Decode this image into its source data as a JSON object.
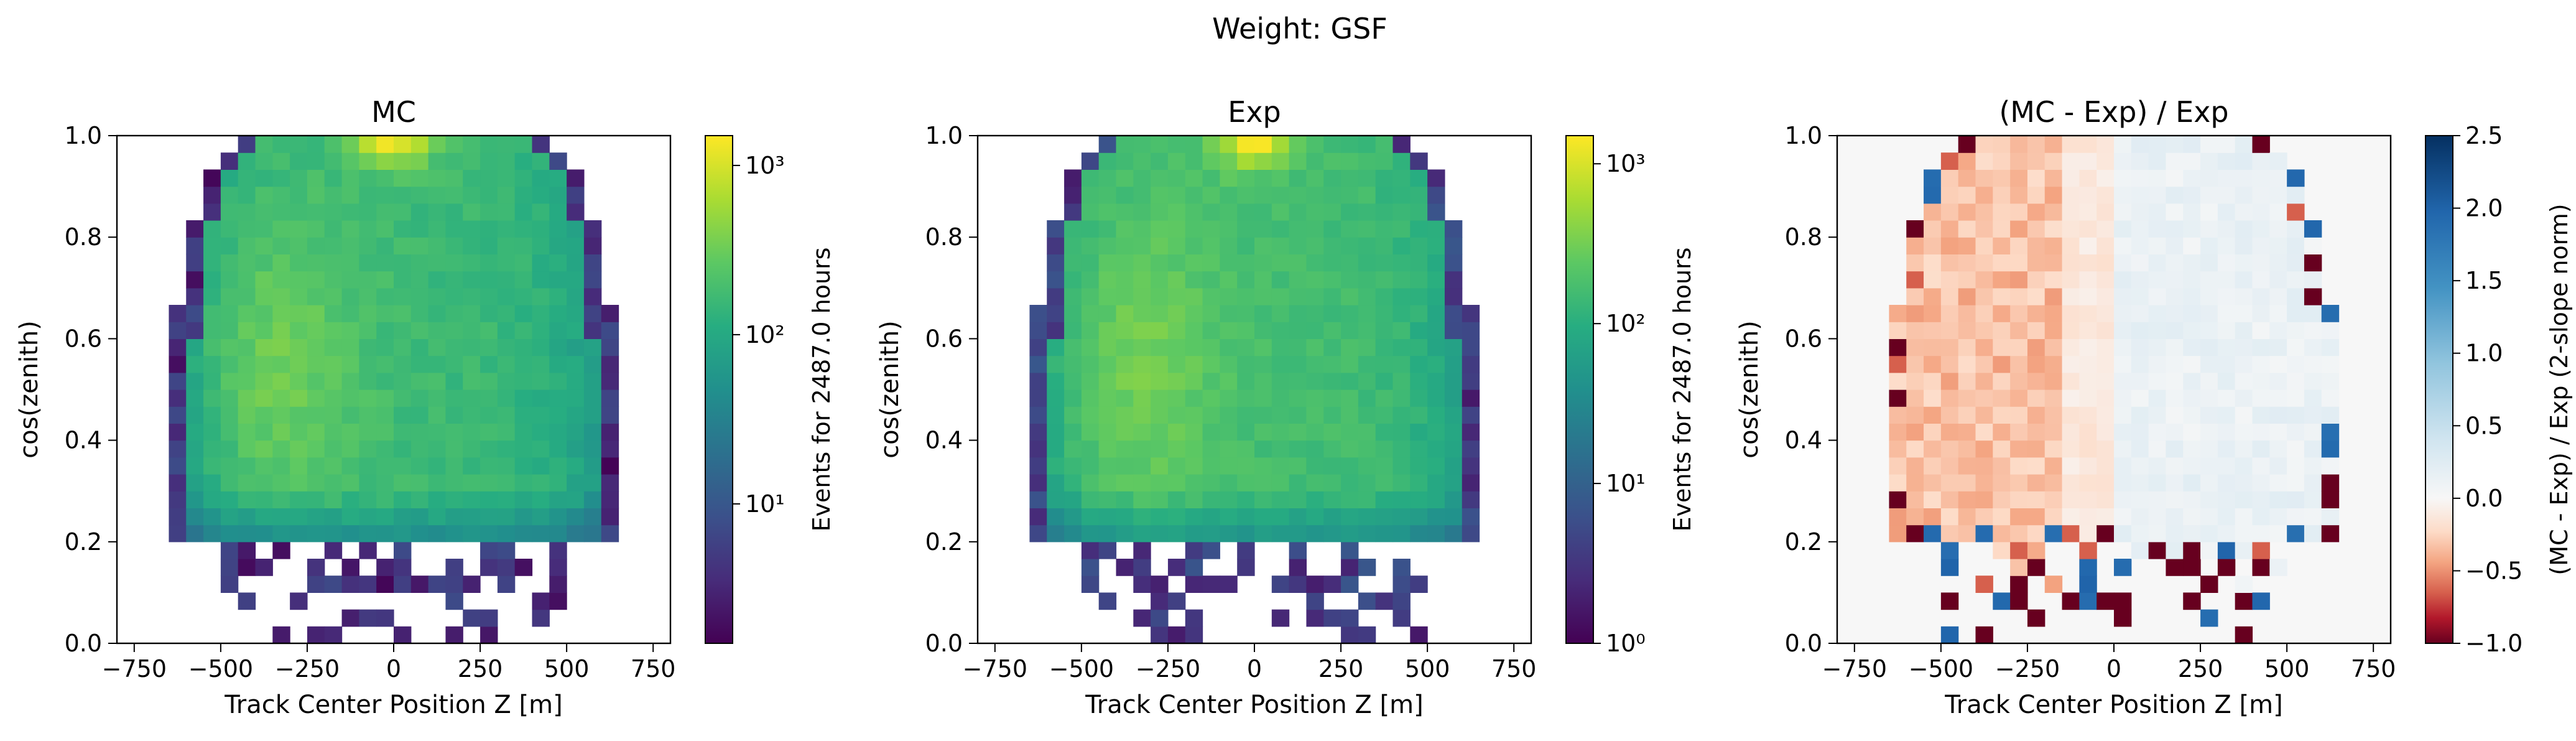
{
  "suptitle": "Weight: GSF",
  "chart_data": [
    {
      "type": "heatmap",
      "title": "MC",
      "xlabel": "Track Center Position Z [m]",
      "ylabel": "cos(zenith)",
      "xlim": [
        -800,
        800
      ],
      "ylim": [
        0.0,
        1.0
      ],
      "xticks": [
        -750,
        -500,
        -250,
        0,
        250,
        500,
        750
      ],
      "xtick_labels": [
        "−750",
        "−500",
        "−250",
        "0",
        "250",
        "500",
        "750"
      ],
      "yticks": [
        0.0,
        0.2,
        0.4,
        0.6,
        0.8,
        1.0
      ],
      "ytick_labels": [
        "0.0",
        "0.2",
        "0.4",
        "0.6",
        "0.8",
        "1.0"
      ],
      "grid": false,
      "colormap": "viridis",
      "color_scale": "log",
      "colorbar": {
        "label": "Events for 2487.0 hours",
        "range": [
          1.5,
          1500
        ],
        "ticks": [
          10,
          100,
          1000
        ],
        "tick_labels": [
          "10¹",
          "10²",
          "10³"
        ]
      },
      "grid_bins": {
        "z_range": [
          -800,
          800
        ],
        "z_bins": 32,
        "cos_range": [
          0,
          1
        ],
        "cos_bins": 30
      },
      "summary": "Roughly dome-shaped occupancy; peak ~1e3 events near Z=0, cos(zenith)=1.0; bright yellow-green band around Z=-500 to -250, cos 0.4-0.7; sparse low counts below cos 0.2"
    },
    {
      "type": "heatmap",
      "title": "Exp",
      "xlabel": "Track Center Position Z [m]",
      "ylabel": "cos(zenith)",
      "xlim": [
        -800,
        800
      ],
      "ylim": [
        0.0,
        1.0
      ],
      "xticks": [
        -750,
        -500,
        -250,
        0,
        250,
        500,
        750
      ],
      "xtick_labels": [
        "−750",
        "−500",
        "−250",
        "0",
        "250",
        "500",
        "750"
      ],
      "yticks": [
        0.0,
        0.2,
        0.4,
        0.6,
        0.8,
        1.0
      ],
      "ytick_labels": [
        "0.0",
        "0.2",
        "0.4",
        "0.6",
        "0.8",
        "1.0"
      ],
      "grid": false,
      "colormap": "viridis",
      "color_scale": "log",
      "colorbar": {
        "label": "Events for 2487.0 hours",
        "range": [
          1,
          1500
        ],
        "ticks": [
          1,
          10,
          100,
          1000
        ],
        "tick_labels": [
          "10⁰",
          "10¹",
          "10²",
          "10³"
        ]
      },
      "grid_bins": {
        "z_range": [
          -800,
          800
        ],
        "z_bins": 32,
        "cos_range": [
          0,
          1
        ],
        "cos_bins": 30
      },
      "summary": "Similar dome-shaped occupancy as MC; peak ~1e3 near Z=0, cos=1.0; scattered low-count bins below cos 0.2"
    },
    {
      "type": "heatmap",
      "title": "(MC - Exp) / Exp",
      "xlabel": "Track Center Position Z [m]",
      "ylabel": "cos(zenith)",
      "xlim": [
        -800,
        800
      ],
      "ylim": [
        0.0,
        1.0
      ],
      "xticks": [
        -750,
        -500,
        -250,
        0,
        250,
        500,
        750
      ],
      "xtick_labels": [
        "−750",
        "−500",
        "−250",
        "0",
        "250",
        "500",
        "750"
      ],
      "yticks": [
        0.0,
        0.2,
        0.4,
        0.6,
        0.8,
        1.0
      ],
      "ytick_labels": [
        "0.0",
        "0.2",
        "0.4",
        "0.6",
        "0.8",
        "1.0"
      ],
      "grid": false,
      "colormap": "RdBu",
      "color_scale": "two-slope",
      "colorbar": {
        "label": "(MC - Exp) / Exp (2-slope norm)",
        "range": [
          -1.0,
          2.5
        ],
        "center": 0.0,
        "ticks": [
          -1.0,
          -0.5,
          0.0,
          0.5,
          1.0,
          1.5,
          2.0,
          2.5
        ],
        "tick_labels": [
          "−1.0",
          "−0.5",
          "0.0",
          "0.5",
          "1.0",
          "1.5",
          "2.0",
          "2.5"
        ]
      },
      "grid_bins": {
        "z_range": [
          -800,
          800
        ],
        "z_bins": 32,
        "cos_range": [
          0,
          1
        ],
        "cos_bins": 30
      },
      "summary": "Light red (MC < Exp, ~-0.2 to -0.4) for Z < -150 m; light blue (~+0.1 to +0.3) for Z > 0; strong outliers near edges and low cos(zenith)"
    }
  ]
}
